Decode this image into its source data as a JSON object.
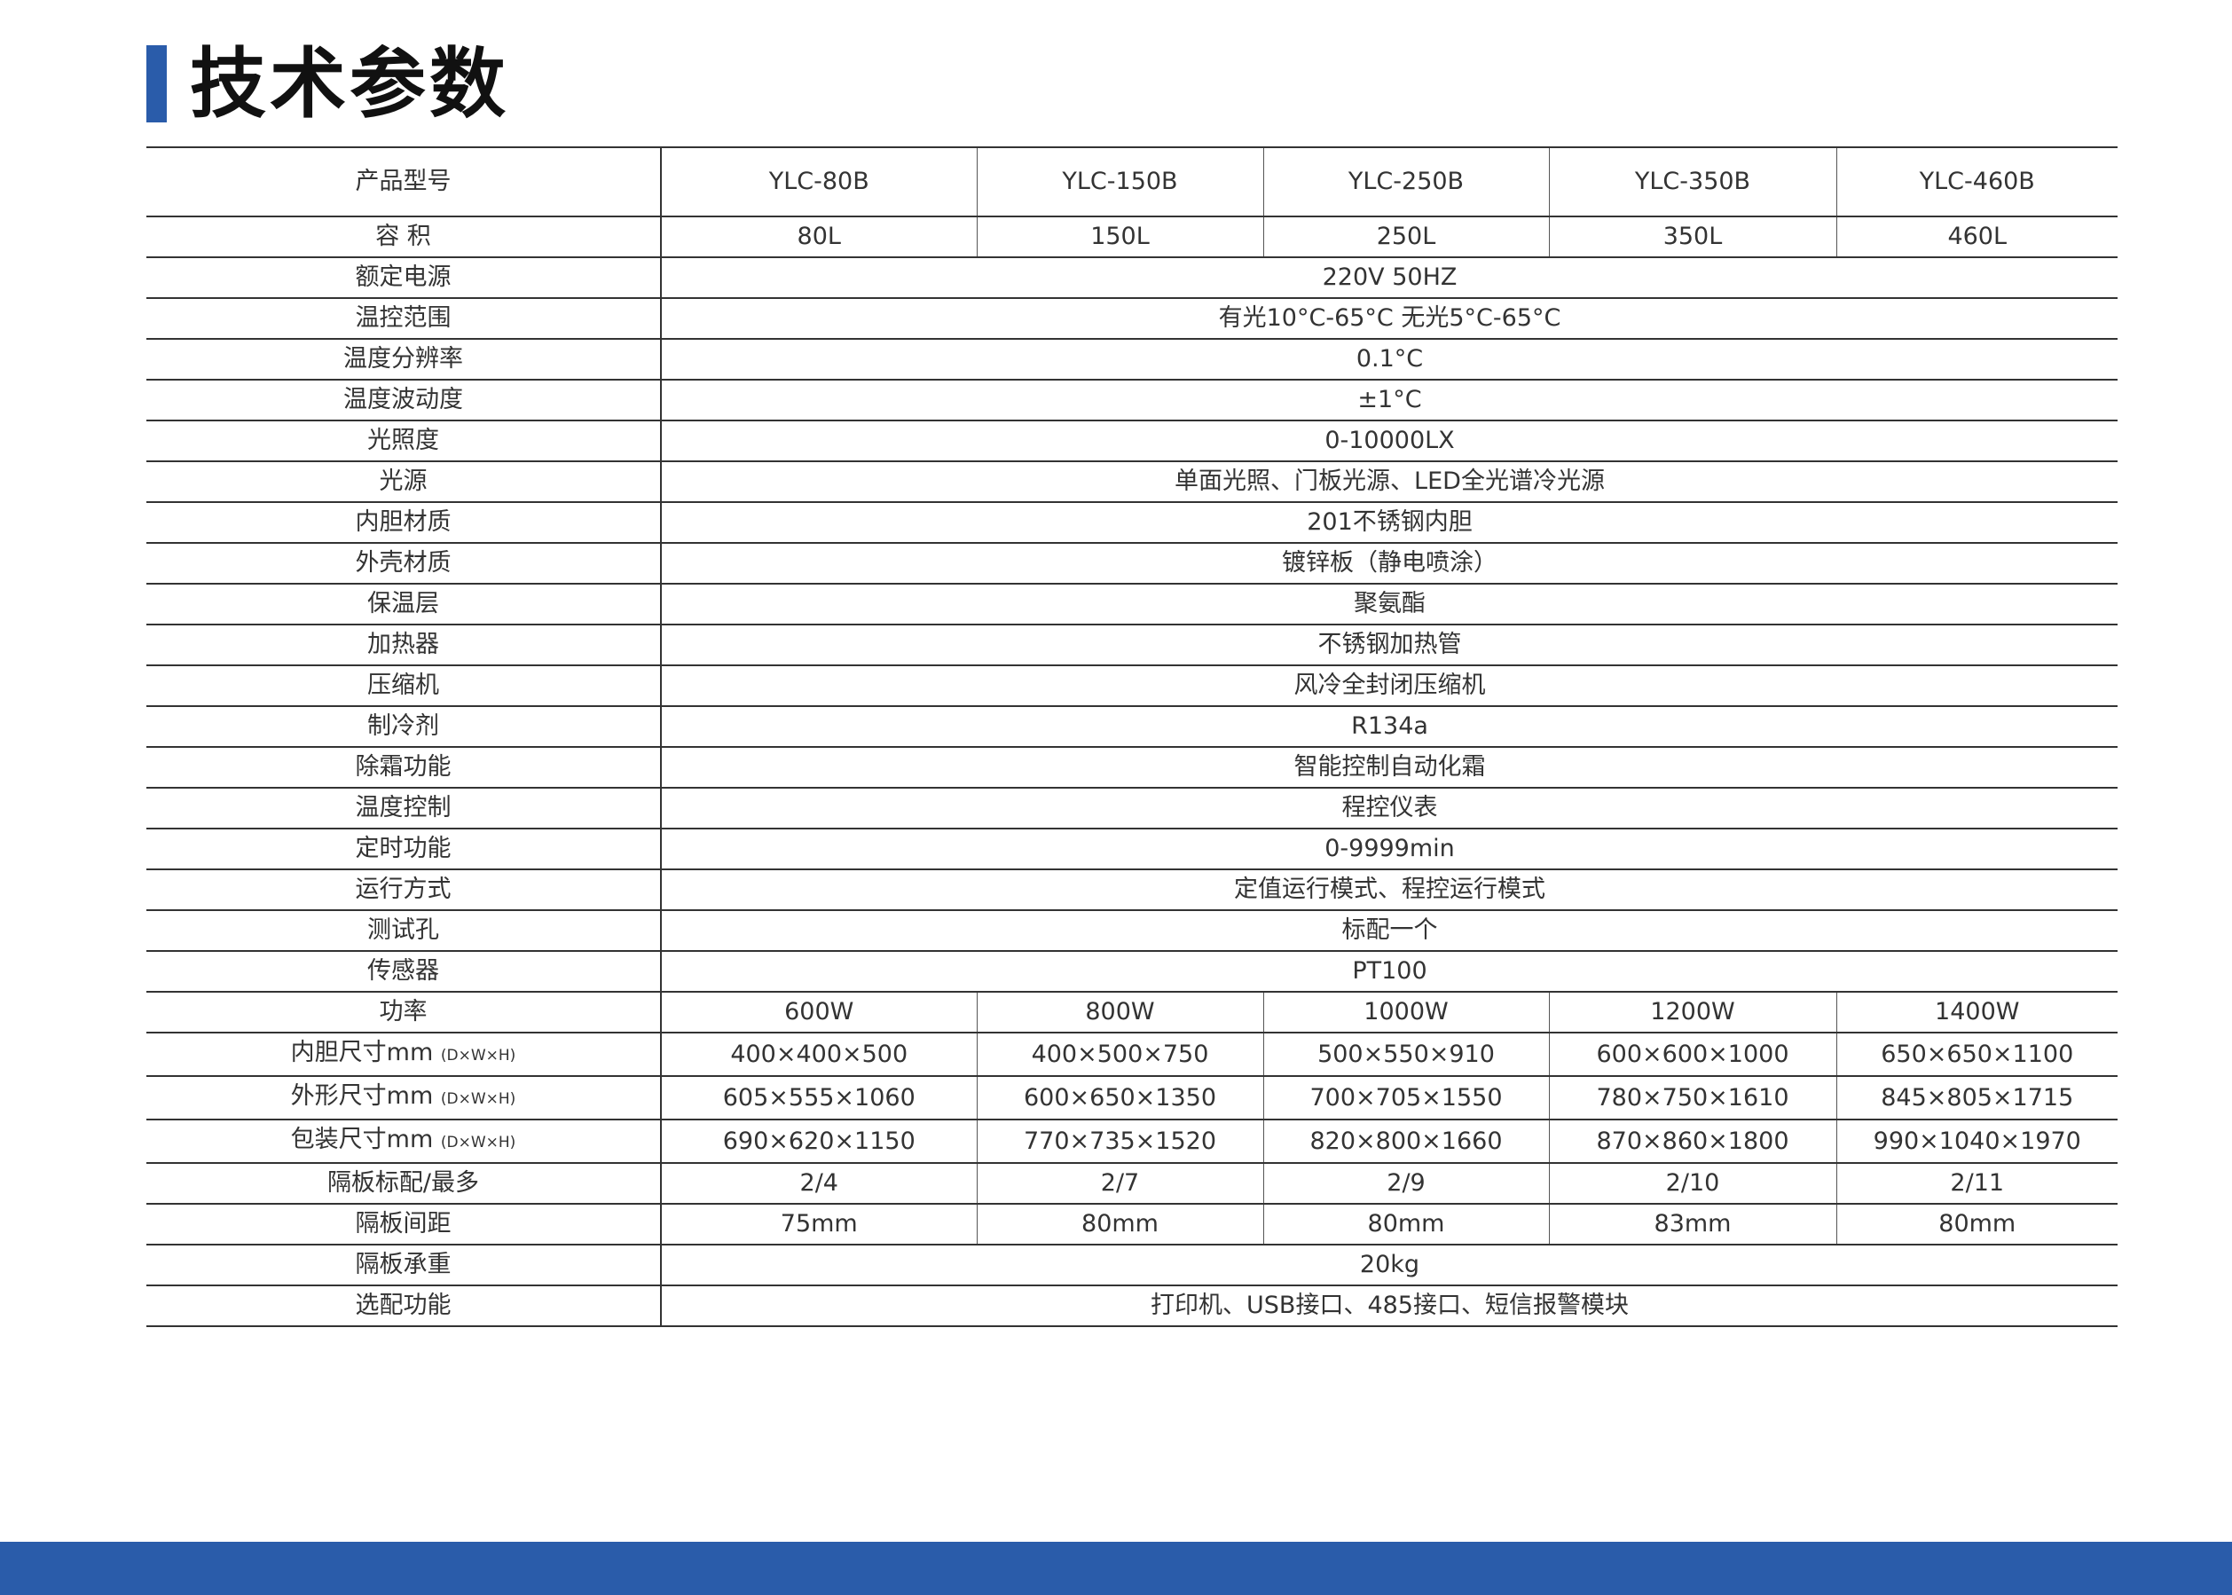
{
  "title": "技术参数",
  "colors": {
    "accent": "#2a5caa",
    "footer": "#2a5caa"
  },
  "table": {
    "header": {
      "label": "产品型号",
      "values": [
        "YLC-80B",
        "YLC-150B",
        "YLC-250B",
        "YLC-350B",
        "YLC-460B"
      ]
    },
    "rows": [
      {
        "label": "容 积",
        "values": [
          "80L",
          "150L",
          "250L",
          "350L",
          "460L"
        ]
      },
      {
        "label": "额定电源",
        "value": "220V 50HZ"
      },
      {
        "label": "温控范围",
        "value": "有光10°C-65°C  无光5°C-65°C"
      },
      {
        "label": "温度分辨率",
        "value": "0.1°C"
      },
      {
        "label": "温度波动度",
        "value": "±1°C"
      },
      {
        "label": "光照度",
        "value": "0-10000LX"
      },
      {
        "label": "光源",
        "value": "单面光照、门板光源、LED全光谱冷光源"
      },
      {
        "label": "内胆材质",
        "value": "201不锈钢内胆"
      },
      {
        "label": "外壳材质",
        "value": "镀锌板（静电喷涂）"
      },
      {
        "label": "保温层",
        "value": "聚氨酯"
      },
      {
        "label": "加热器",
        "value": "不锈钢加热管"
      },
      {
        "label": "压缩机",
        "value": "风冷全封闭压缩机"
      },
      {
        "label": "制冷剂",
        "value": "R134a"
      },
      {
        "label": "除霜功能",
        "value": "智能控制自动化霜"
      },
      {
        "label": "温度控制",
        "value": "程控仪表"
      },
      {
        "label": "定时功能",
        "value": "0-9999min"
      },
      {
        "label": "运行方式",
        "value": "定值运行模式、程控运行模式"
      },
      {
        "label": "测试孔",
        "value": "标配一个"
      },
      {
        "label": "传感器",
        "value": "PT100"
      },
      {
        "label": "功率",
        "values": [
          "600W",
          "800W",
          "1000W",
          "1200W",
          "1400W"
        ]
      },
      {
        "label": "内胆尺寸mm",
        "sub": "(D×W×H)",
        "values": [
          "400×400×500",
          "400×500×750",
          "500×550×910",
          "600×600×1000",
          "650×650×1100"
        ]
      },
      {
        "label": "外形尺寸mm",
        "sub": "(D×W×H)",
        "values": [
          "605×555×1060",
          "600×650×1350",
          "700×705×1550",
          "780×750×1610",
          "845×805×1715"
        ]
      },
      {
        "label": "包装尺寸mm",
        "sub": "(D×W×H)",
        "values": [
          "690×620×1150",
          "770×735×1520",
          "820×800×1660",
          "870×860×1800",
          "990×1040×1970"
        ]
      },
      {
        "label": "隔板标配/最多",
        "values": [
          "2/4",
          "2/7",
          "2/9",
          "2/10",
          "2/11"
        ]
      },
      {
        "label": "隔板间距",
        "values": [
          "75mm",
          "80mm",
          "80mm",
          "83mm",
          "80mm"
        ]
      },
      {
        "label": "隔板承重",
        "value": "20kg"
      },
      {
        "label": "选配功能",
        "value": "打印机、USB接口、485接口、短信报警模块"
      }
    ]
  }
}
